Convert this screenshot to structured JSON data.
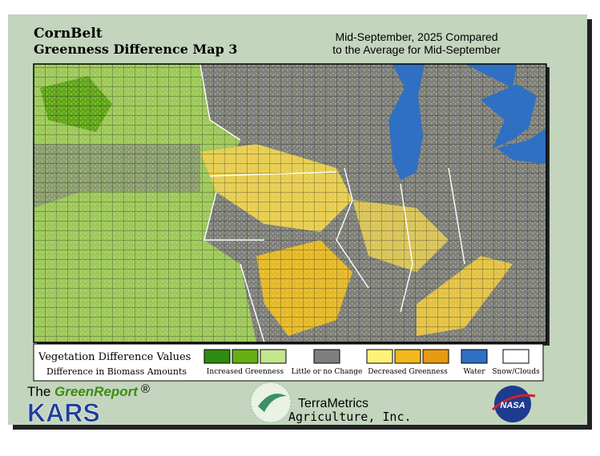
{
  "header": {
    "title": "CornBelt",
    "subtitle": "Greenness Difference Map 3",
    "period_line1": "Mid-September, 2025 Compared",
    "period_line2": "to the Average for Mid-September"
  },
  "legend": {
    "title": "Vegetation Difference Values",
    "subtitle": "Difference in Biomass Amounts",
    "groups": [
      {
        "label": "Increased Greenness",
        "colors": [
          "#2f8a12",
          "#67ae14",
          "#c4e68c"
        ]
      },
      {
        "label": "Little or no Change",
        "colors": [
          "#7f7f7f"
        ]
      },
      {
        "label": "Decreased Greenness",
        "colors": [
          "#fff27a",
          "#f2b81c",
          "#e99a12"
        ]
      },
      {
        "label": "Water",
        "colors": [
          "#2f70c2"
        ]
      },
      {
        "label": "Snow/Clouds",
        "colors": [
          "#ffffff"
        ]
      }
    ]
  },
  "footer": {
    "the": "The",
    "greenreport": "GreenReport",
    "registered": "®",
    "kars": "KARS",
    "terrametrics": "TerraMetrics",
    "agriculture": "Agriculture, Inc.",
    "nasa": "NASA"
  }
}
